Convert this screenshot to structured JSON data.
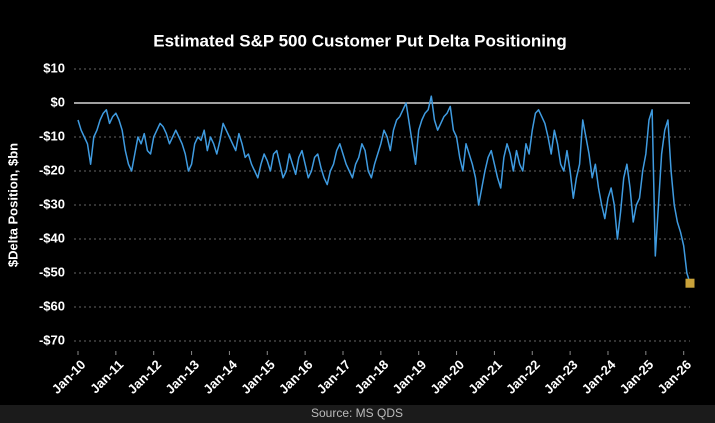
{
  "chart_data": {
    "type": "line",
    "title": "Estimated S&P 500 Customer Put Delta Positioning",
    "y_label": "$Delta Position, $bn",
    "source": "Source: MS QDS",
    "color": "#3f9be0",
    "last_point_marker_color": "#c9a23a",
    "zero_line": true,
    "grid": true,
    "x": [
      "2010-01",
      "2010-02",
      "2010-03",
      "2010-04",
      "2010-05",
      "2010-06",
      "2010-07",
      "2010-08",
      "2010-09",
      "2010-10",
      "2010-11",
      "2010-12",
      "2011-01",
      "2011-02",
      "2011-03",
      "2011-04",
      "2011-05",
      "2011-06",
      "2011-07",
      "2011-08",
      "2011-09",
      "2011-10",
      "2011-11",
      "2011-12",
      "2012-01",
      "2012-02",
      "2012-03",
      "2012-04",
      "2012-05",
      "2012-06",
      "2012-07",
      "2012-08",
      "2012-09",
      "2012-10",
      "2012-11",
      "2012-12",
      "2013-01",
      "2013-02",
      "2013-03",
      "2013-04",
      "2013-05",
      "2013-06",
      "2013-07",
      "2013-08",
      "2013-09",
      "2013-10",
      "2013-11",
      "2013-12",
      "2014-01",
      "2014-02",
      "2014-03",
      "2014-04",
      "2014-05",
      "2014-06",
      "2014-07",
      "2014-08",
      "2014-09",
      "2014-10",
      "2014-11",
      "2014-12",
      "2015-01",
      "2015-02",
      "2015-03",
      "2015-04",
      "2015-05",
      "2015-06",
      "2015-07",
      "2015-08",
      "2015-09",
      "2015-10",
      "2015-11",
      "2015-12",
      "2016-01",
      "2016-02",
      "2016-03",
      "2016-04",
      "2016-05",
      "2016-06",
      "2016-07",
      "2016-08",
      "2016-09",
      "2016-10",
      "2016-11",
      "2016-12",
      "2017-01",
      "2017-02",
      "2017-03",
      "2017-04",
      "2017-05",
      "2017-06",
      "2017-07",
      "2017-08",
      "2017-09",
      "2017-10",
      "2017-11",
      "2017-12",
      "2018-01",
      "2018-02",
      "2018-03",
      "2018-04",
      "2018-05",
      "2018-06",
      "2018-07",
      "2018-08",
      "2018-09",
      "2018-10",
      "2018-11",
      "2018-12",
      "2019-01",
      "2019-02",
      "2019-03",
      "2019-04",
      "2019-05",
      "2019-06",
      "2019-07",
      "2019-08",
      "2019-09",
      "2019-10",
      "2019-11",
      "2019-12",
      "2020-01",
      "2020-02",
      "2020-03",
      "2020-04",
      "2020-05",
      "2020-06",
      "2020-07",
      "2020-08",
      "2020-09",
      "2020-10",
      "2020-11",
      "2020-12",
      "2021-01",
      "2021-02",
      "2021-03",
      "2021-04",
      "2021-05",
      "2021-06",
      "2021-07",
      "2021-08",
      "2021-09",
      "2021-10",
      "2021-11",
      "2021-12",
      "2022-01",
      "2022-02",
      "2022-03",
      "2022-04",
      "2022-05",
      "2022-06",
      "2022-07",
      "2022-08",
      "2022-09",
      "2022-10",
      "2022-11",
      "2022-12",
      "2023-01",
      "2023-02",
      "2023-03",
      "2023-04",
      "2023-05",
      "2023-06",
      "2023-07",
      "2023-08",
      "2023-09",
      "2023-10",
      "2023-11",
      "2023-12",
      "2024-01",
      "2024-02",
      "2024-03",
      "2024-04",
      "2024-05",
      "2024-06",
      "2024-07",
      "2024-08",
      "2024-09",
      "2024-10",
      "2024-11",
      "2024-12",
      "2025-01",
      "2025-02",
      "2025-03",
      "2025-04",
      "2025-05",
      "2025-06",
      "2025-07",
      "2025-08",
      "2025-09",
      "2025-10",
      "2025-11",
      "2025-12",
      "2026-01",
      "2026-02",
      "2026-03"
    ],
    "values": [
      -5,
      -8,
      -10,
      -12,
      -18,
      -10,
      -8,
      -5,
      -3,
      -2,
      -6,
      -4,
      -3,
      -5,
      -8,
      -14,
      -18,
      -20,
      -15,
      -10,
      -12,
      -9,
      -14,
      -15,
      -10,
      -8,
      -6,
      -7,
      -9,
      -12,
      -10,
      -8,
      -10,
      -12,
      -15,
      -20,
      -18,
      -12,
      -10,
      -11,
      -8,
      -14,
      -10,
      -12,
      -15,
      -11,
      -6,
      -8,
      -10,
      -12,
      -14,
      -9,
      -12,
      -16,
      -15,
      -18,
      -20,
      -22,
      -18,
      -15,
      -17,
      -20,
      -15,
      -14,
      -18,
      -22,
      -20,
      -15,
      -18,
      -21,
      -16,
      -14,
      -18,
      -22,
      -20,
      -16,
      -15,
      -19,
      -22,
      -24,
      -20,
      -18,
      -14,
      -12,
      -15,
      -18,
      -20,
      -22,
      -18,
      -16,
      -12,
      -14,
      -20,
      -22,
      -18,
      -15,
      -12,
      -8,
      -10,
      -14,
      -8,
      -5,
      -4,
      -2,
      0,
      -6,
      -12,
      -18,
      -8,
      -5,
      -3,
      -2,
      2,
      -5,
      -8,
      -6,
      -4,
      -3,
      -1,
      -8,
      -10,
      -16,
      -20,
      -12,
      -15,
      -18,
      -22,
      -30,
      -25,
      -20,
      -16,
      -14,
      -18,
      -22,
      -25,
      -16,
      -12,
      -15,
      -20,
      -14,
      -18,
      -20,
      -12,
      -15,
      -8,
      -3,
      -2,
      -4,
      -6,
      -10,
      -15,
      -8,
      -12,
      -18,
      -20,
      -14,
      -20,
      -28,
      -22,
      -18,
      -5,
      -10,
      -15,
      -22,
      -18,
      -25,
      -30,
      -34,
      -28,
      -25,
      -30,
      -40,
      -32,
      -22,
      -18,
      -25,
      -35,
      -30,
      -28,
      -20,
      -15,
      -5,
      -2,
      -45,
      -30,
      -15,
      -8,
      -5,
      -20,
      -30,
      -35,
      -38,
      -42,
      -50,
      -53
    ],
    "xticks": [
      {
        "value": "2010-01",
        "label": "Jan-10"
      },
      {
        "value": "2011-01",
        "label": "Jan-11"
      },
      {
        "value": "2012-01",
        "label": "Jan-12"
      },
      {
        "value": "2013-01",
        "label": "Jan-13"
      },
      {
        "value": "2014-01",
        "label": "Jan-14"
      },
      {
        "value": "2015-01",
        "label": "Jan-15"
      },
      {
        "value": "2016-01",
        "label": "Jan-16"
      },
      {
        "value": "2017-01",
        "label": "Jan-17"
      },
      {
        "value": "2018-01",
        "label": "Jan-18"
      },
      {
        "value": "2019-01",
        "label": "Jan-19"
      },
      {
        "value": "2020-01",
        "label": "Jan-20"
      },
      {
        "value": "2021-01",
        "label": "Jan-21"
      },
      {
        "value": "2022-01",
        "label": "Jan-22"
      },
      {
        "value": "2023-01",
        "label": "Jan-23"
      },
      {
        "value": "2024-01",
        "label": "Jan-24"
      },
      {
        "value": "2025-01",
        "label": "Jan-25"
      },
      {
        "value": "2026-01",
        "label": "Jan-26"
      }
    ],
    "xlim": [
      "2010-01",
      "2026-03"
    ],
    "ylim": [
      -70,
      10
    ],
    "yticks": [
      {
        "value": 10,
        "label": "$10"
      },
      {
        "value": 0,
        "label": "$0"
      },
      {
        "value": -10,
        "label": "-$10"
      },
      {
        "value": -20,
        "label": "-$20"
      },
      {
        "value": -30,
        "label": "-$30"
      },
      {
        "value": -40,
        "label": "-$40"
      },
      {
        "value": -50,
        "label": "-$50"
      },
      {
        "value": -60,
        "label": "-$60"
      },
      {
        "value": -70,
        "label": "-$70"
      }
    ]
  }
}
